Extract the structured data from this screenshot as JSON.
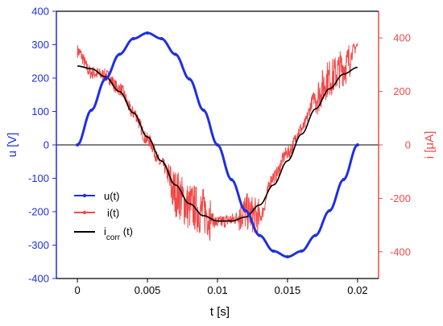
{
  "chart_data": {
    "type": "line",
    "title": "",
    "xlabel": "t [s]",
    "ylabel_left": "u [V]",
    "ylabel_right": "i [μA]",
    "xlim": [
      -0.0015,
      0.0215
    ],
    "ylim_left": [
      -400,
      400
    ],
    "ylim_right": [
      -500,
      500
    ],
    "x_ticks": [
      0,
      0.005,
      0.01,
      0.015,
      0.02
    ],
    "x_tick_labels": [
      "0",
      "0.005",
      "0.01",
      "0.015",
      "0.02"
    ],
    "y_left_ticks": [
      -400,
      -300,
      -200,
      -100,
      0,
      100,
      200,
      300,
      400
    ],
    "y_left_tick_labels": [
      "-400",
      "-300",
      "-200",
      "-100",
      "0",
      "100",
      "200",
      "300",
      "400"
    ],
    "y_right_ticks": [
      -400,
      -200,
      0,
      200,
      400
    ],
    "y_right_tick_labels": [
      "-400",
      "-200",
      "0",
      "200",
      "400"
    ],
    "grid": false,
    "legend_position": "bottom-left",
    "colors": {
      "u": "#1f2fe0",
      "i": "#f04a4a",
      "i_corr": "#000000",
      "axis_left": "#1f2fe0",
      "axis_right": "#f04a4a"
    },
    "series": [
      {
        "name": "u(t)",
        "axis": "left",
        "style": "line-with-markers",
        "x": [
          0,
          0.001,
          0.002,
          0.003,
          0.004,
          0.005,
          0.006,
          0.007,
          0.008,
          0.009,
          0.01,
          0.011,
          0.012,
          0.013,
          0.014,
          0.015,
          0.016,
          0.017,
          0.018,
          0.019,
          0.02
        ],
        "values": [
          0,
          104,
          197,
          271,
          318,
          335,
          318,
          271,
          197,
          104,
          0,
          -104,
          -197,
          -271,
          -318,
          -335,
          -318,
          -271,
          -197,
          -104,
          0
        ]
      },
      {
        "name": "i(t)",
        "axis": "right",
        "style": "noisy-line",
        "x": [
          0,
          0.001,
          0.002,
          0.003,
          0.004,
          0.005,
          0.006,
          0.007,
          0.008,
          0.009,
          0.01,
          0.011,
          0.012,
          0.013,
          0.014,
          0.015,
          0.016,
          0.017,
          0.018,
          0.019,
          0.02
        ],
        "values": [
          350,
          270,
          260,
          210,
          120,
          20,
          -70,
          -180,
          -230,
          -250,
          -290,
          -280,
          -250,
          -270,
          -120,
          -30,
          60,
          180,
          250,
          290,
          370
        ]
      },
      {
        "name": "i_corr (t)",
        "axis": "right",
        "style": "line",
        "x": [
          0,
          0.001,
          0.002,
          0.003,
          0.004,
          0.005,
          0.006,
          0.007,
          0.008,
          0.009,
          0.01,
          0.011,
          0.012,
          0.013,
          0.014,
          0.015,
          0.016,
          0.017,
          0.018,
          0.019,
          0.02
        ],
        "values": [
          295,
          285,
          255,
          200,
          120,
          30,
          -60,
          -150,
          -220,
          -265,
          -285,
          -285,
          -270,
          -225,
          -150,
          -60,
          40,
          135,
          210,
          265,
          290
        ]
      }
    ]
  }
}
